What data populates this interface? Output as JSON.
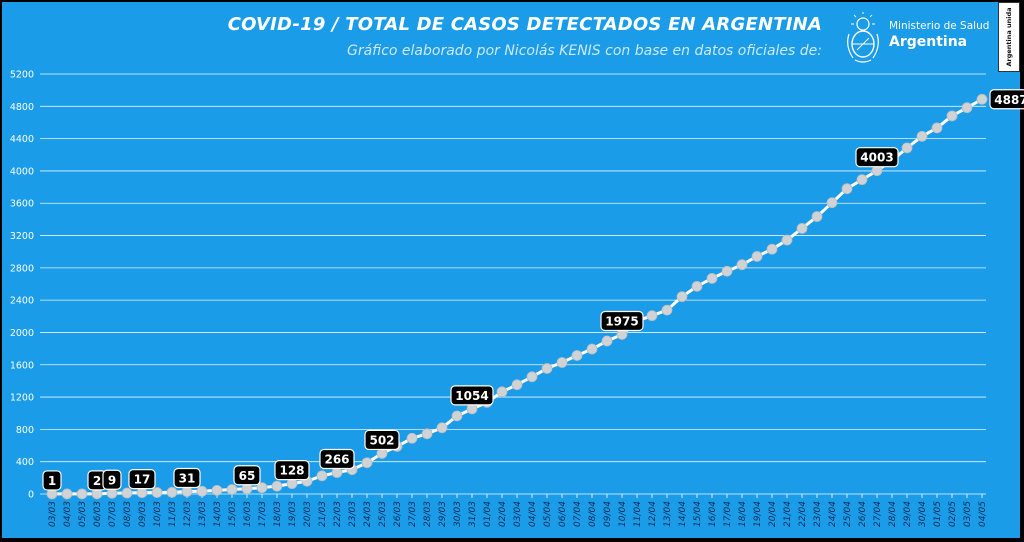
{
  "header": {
    "title": "COVID-19  /  TOTAL DE CASOS DETECTADOS EN ARGENTINA",
    "subtitle": "Gráfico elaborado por Nicolás KENIS con base en datos oficiales de:"
  },
  "logo": {
    "line1": "Ministerio de Salud",
    "line2": "Argentina",
    "icon": "national-coat-of-arms"
  },
  "badge": {
    "text": "Argentina unida"
  },
  "colors": {
    "background": "#1A9CE8",
    "frame": "#000000",
    "series_line": "#FFFFFF",
    "marker": "#D0D3D6",
    "label_box": "#000000",
    "label_text": "#FFFFFF",
    "x_tick_text": "#0B2B55",
    "grid": "#FFFFFF"
  },
  "chart_data": {
    "type": "line",
    "title": "COVID-19  /  TOTAL DE CASOS DETECTADOS EN ARGENTINA",
    "xlabel": "",
    "ylabel": "",
    "ylim": [
      0,
      5200
    ],
    "yticks": [
      0,
      400,
      800,
      1200,
      1600,
      2000,
      2400,
      2800,
      3200,
      3600,
      4000,
      4400,
      4800,
      5200
    ],
    "grid": true,
    "legend": "none",
    "x": [
      "03/03",
      "04/03",
      "05/03",
      "06/03",
      "07/03",
      "08/03",
      "09/03",
      "10/03",
      "11/03",
      "12/03",
      "13/03",
      "14/03",
      "15/03",
      "16/03",
      "17/03",
      "18/03",
      "19/03",
      "20/03",
      "21/03",
      "22/03",
      "23/03",
      "24/03",
      "25/03",
      "26/03",
      "27/03",
      "28/03",
      "29/03",
      "30/03",
      "31/03",
      "01/04",
      "02/04",
      "03/04",
      "04/04",
      "05/04",
      "06/04",
      "07/04",
      "08/04",
      "09/04",
      "10/04",
      "11/04",
      "12/04",
      "13/04",
      "14/04",
      "15/04",
      "16/04",
      "17/04",
      "18/04",
      "19/04",
      "20/04",
      "21/04",
      "22/04",
      "23/04",
      "24/04",
      "25/04",
      "26/04",
      "27/04",
      "28/04",
      "29/04",
      "30/04",
      "01/05",
      "02/05",
      "03/05",
      "04/05"
    ],
    "series": [
      {
        "values": [
          1,
          1,
          1,
          2,
          9,
          12,
          17,
          19,
          21,
          31,
          34,
          45,
          56,
          65,
          79,
          97,
          128,
          158,
          225,
          266,
          301,
          387,
          502,
          589,
          690,
          745,
          820,
          966,
          1054,
          1133,
          1265,
          1353,
          1451,
          1554,
          1628,
          1715,
          1795,
          1894,
          1975,
          2142,
          2208,
          2277,
          2443,
          2571,
          2669,
          2758,
          2839,
          2941,
          3031,
          3144,
          3288,
          3435,
          3607,
          3780,
          3892,
          4003,
          4127,
          4285,
          4428,
          4532,
          4681,
          4783,
          4887
        ],
        "labels": [
          {
            "x": "03/03",
            "text": "1"
          },
          {
            "x": "06/03",
            "text": "2"
          },
          {
            "x": "07/03",
            "text": "9"
          },
          {
            "x": "09/03",
            "text": "17"
          },
          {
            "x": "12/03",
            "text": "31"
          },
          {
            "x": "16/03",
            "text": "65"
          },
          {
            "x": "19/03",
            "text": "128"
          },
          {
            "x": "22/03",
            "text": "266"
          },
          {
            "x": "25/03",
            "text": "502"
          },
          {
            "x": "31/03",
            "text": "1054"
          },
          {
            "x": "10/04",
            "text": "1975"
          },
          {
            "x": "27/04",
            "text": "4003"
          },
          {
            "x": "04/05",
            "text": "4887"
          }
        ]
      }
    ]
  }
}
